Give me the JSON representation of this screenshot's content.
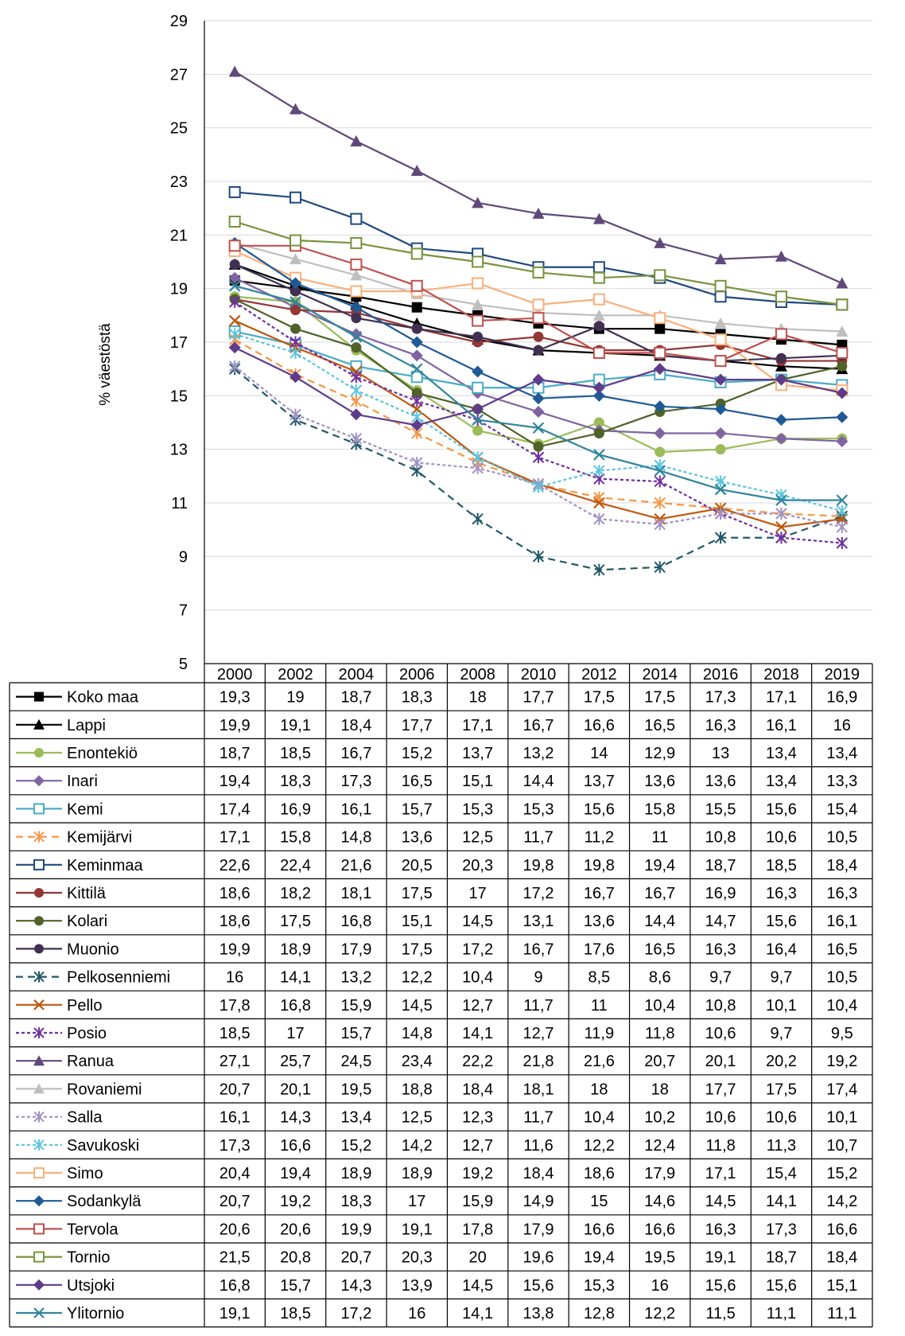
{
  "chart_data": {
    "type": "line",
    "ylabel": "% väestöstä",
    "ylim": [
      5,
      29
    ],
    "yticks": [
      5,
      7,
      9,
      11,
      13,
      15,
      17,
      19,
      21,
      23,
      25,
      27,
      29
    ],
    "ytick_labels": [
      "5",
      "7",
      "9",
      "11",
      "13",
      "15",
      "17",
      "19",
      "21",
      "23",
      "25",
      "27",
      "29"
    ],
    "categories": [
      "2000",
      "2002",
      "2004",
      "2006",
      "2008",
      "2010",
      "2012",
      "2014",
      "2016",
      "2018",
      "2019"
    ],
    "grid": true,
    "legend": "data table below the chart",
    "series": [
      {
        "name": "Koko maa",
        "color": "#000000",
        "marker": "square-filled",
        "dash": "solid",
        "values": [
          19.3,
          19,
          18.7,
          18.3,
          18,
          17.7,
          17.5,
          17.5,
          17.3,
          17.1,
          16.9
        ],
        "labels": [
          "19,3",
          "19",
          "18,7",
          "18,3",
          "18",
          "17,7",
          "17,5",
          "17,5",
          "17,3",
          "17,1",
          "16,9"
        ]
      },
      {
        "name": "Lappi",
        "color": "#000000",
        "marker": "triangle-filled",
        "dash": "solid",
        "values": [
          19.9,
          19.1,
          18.4,
          17.7,
          17.1,
          16.7,
          16.6,
          16.5,
          16.3,
          16.1,
          16
        ],
        "labels": [
          "19,9",
          "19,1",
          "18,4",
          "17,7",
          "17,1",
          "16,7",
          "16,6",
          "16,5",
          "16,3",
          "16,1",
          "16"
        ]
      },
      {
        "name": "Enontekiö",
        "color": "#9BBB59",
        "marker": "circle-filled",
        "dash": "solid",
        "values": [
          18.7,
          18.5,
          16.7,
          15.2,
          13.7,
          13.2,
          14,
          12.9,
          13,
          13.4,
          13.4
        ],
        "labels": [
          "18,7",
          "18,5",
          "16,7",
          "15,2",
          "13,7",
          "13,2",
          "14",
          "12,9",
          "13",
          "13,4",
          "13,4"
        ]
      },
      {
        "name": "Inari",
        "color": "#8064A2",
        "marker": "diamond-filled",
        "dash": "solid",
        "values": [
          19.4,
          18.3,
          17.3,
          16.5,
          15.1,
          14.4,
          13.7,
          13.6,
          13.6,
          13.4,
          13.3
        ],
        "labels": [
          "19,4",
          "18,3",
          "17,3",
          "16,5",
          "15,1",
          "14,4",
          "13,7",
          "13,6",
          "13,6",
          "13,4",
          "13,3"
        ]
      },
      {
        "name": "Kemi",
        "color": "#4BACC6",
        "marker": "square-open",
        "dash": "solid",
        "values": [
          17.4,
          16.9,
          16.1,
          15.7,
          15.3,
          15.3,
          15.6,
          15.8,
          15.5,
          15.6,
          15.4
        ],
        "labels": [
          "17,4",
          "16,9",
          "16,1",
          "15,7",
          "15,3",
          "15,3",
          "15,6",
          "15,8",
          "15,5",
          "15,6",
          "15,4"
        ]
      },
      {
        "name": "Kemijärvi",
        "color": "#F79646",
        "marker": "star",
        "dash": "dashed",
        "values": [
          17.1,
          15.8,
          14.8,
          13.6,
          12.5,
          11.7,
          11.2,
          11,
          10.8,
          10.6,
          10.5
        ],
        "labels": [
          "17,1",
          "15,8",
          "14,8",
          "13,6",
          "12,5",
          "11,7",
          "11,2",
          "11",
          "10,8",
          "10,6",
          "10,5"
        ]
      },
      {
        "name": "Keminmaa",
        "color": "#1F497D",
        "marker": "square-open",
        "dash": "solid",
        "values": [
          22.6,
          22.4,
          21.6,
          20.5,
          20.3,
          19.8,
          19.8,
          19.4,
          18.7,
          18.5,
          18.4
        ],
        "labels": [
          "22,6",
          "22,4",
          "21,6",
          "20,5",
          "20,3",
          "19,8",
          "19,8",
          "19,4",
          "18,7",
          "18,5",
          "18,4"
        ]
      },
      {
        "name": "Kittilä",
        "color": "#943634",
        "marker": "circle-filled",
        "dash": "solid",
        "values": [
          18.6,
          18.2,
          18.1,
          17.5,
          17,
          17.2,
          16.7,
          16.7,
          16.9,
          16.3,
          16.3
        ],
        "labels": [
          "18,6",
          "18,2",
          "18,1",
          "17,5",
          "17",
          "17,2",
          "16,7",
          "16,7",
          "16,9",
          "16,3",
          "16,3"
        ]
      },
      {
        "name": "Kolari",
        "color": "#4F6228",
        "marker": "circle-filled",
        "dash": "solid",
        "values": [
          18.6,
          17.5,
          16.8,
          15.1,
          14.5,
          13.1,
          13.6,
          14.4,
          14.7,
          15.6,
          16.1
        ],
        "labels": [
          "18,6",
          "17,5",
          "16,8",
          "15,1",
          "14,5",
          "13,1",
          "13,6",
          "14,4",
          "14,7",
          "15,6",
          "16,1"
        ]
      },
      {
        "name": "Muonio",
        "color": "#403152",
        "marker": "circle-filled",
        "dash": "solid",
        "values": [
          19.9,
          18.9,
          17.9,
          17.5,
          17.2,
          16.7,
          17.6,
          16.5,
          16.3,
          16.4,
          16.5
        ],
        "labels": [
          "19,9",
          "18,9",
          "17,9",
          "17,5",
          "17,2",
          "16,7",
          "17,6",
          "16,5",
          "16,3",
          "16,4",
          "16,5"
        ]
      },
      {
        "name": "Pelkosenniemi",
        "color": "#215968",
        "marker": "star",
        "dash": "dashed",
        "values": [
          16,
          14.1,
          13.2,
          12.2,
          10.4,
          9,
          8.5,
          8.6,
          9.7,
          9.7,
          10.5
        ],
        "labels": [
          "16",
          "14,1",
          "13,2",
          "12,2",
          "10,4",
          "9",
          "8,5",
          "8,6",
          "9,7",
          "9,7",
          "10,5"
        ]
      },
      {
        "name": "Pello",
        "color": "#C0580B",
        "marker": "x",
        "dash": "solid",
        "values": [
          17.8,
          16.8,
          15.9,
          14.5,
          12.7,
          11.7,
          11,
          10.4,
          10.8,
          10.1,
          10.4
        ],
        "labels": [
          "17,8",
          "16,8",
          "15,9",
          "14,5",
          "12,7",
          "11,7",
          "11",
          "10,4",
          "10,8",
          "10,1",
          "10,4"
        ]
      },
      {
        "name": "Posio",
        "color": "#7030A0",
        "marker": "star",
        "dash": "dotted",
        "values": [
          18.5,
          17,
          15.7,
          14.8,
          14.1,
          12.7,
          11.9,
          11.8,
          10.6,
          9.7,
          9.5
        ],
        "labels": [
          "18,5",
          "17",
          "15,7",
          "14,8",
          "14,1",
          "12,7",
          "11,9",
          "11,8",
          "10,6",
          "9,7",
          "9,5"
        ]
      },
      {
        "name": "Ranua",
        "color": "#60497A",
        "marker": "triangle-filled",
        "dash": "solid",
        "values": [
          27.1,
          25.7,
          24.5,
          23.4,
          22.2,
          21.8,
          21.6,
          20.7,
          20.1,
          20.2,
          19.2
        ],
        "labels": [
          "27,1",
          "25,7",
          "24,5",
          "23,4",
          "22,2",
          "21,8",
          "21,6",
          "20,7",
          "20,1",
          "20,2",
          "19,2"
        ]
      },
      {
        "name": "Rovaniemi",
        "color": "#BFBFBF",
        "marker": "triangle-filled",
        "dash": "solid",
        "values": [
          20.7,
          20.1,
          19.5,
          18.8,
          18.4,
          18.1,
          18,
          18,
          17.7,
          17.5,
          17.4
        ],
        "labels": [
          "20,7",
          "20,1",
          "19,5",
          "18,8",
          "18,4",
          "18,1",
          "18",
          "18",
          "17,7",
          "17,5",
          "17,4"
        ]
      },
      {
        "name": "Salla",
        "color": "#A092C4",
        "marker": "star",
        "dash": "dotted",
        "values": [
          16.1,
          14.3,
          13.4,
          12.5,
          12.3,
          11.7,
          10.4,
          10.2,
          10.6,
          10.6,
          10.1
        ],
        "labels": [
          "16,1",
          "14,3",
          "13,4",
          "12,5",
          "12,3",
          "11,7",
          "10,4",
          "10,2",
          "10,6",
          "10,6",
          "10,1"
        ]
      },
      {
        "name": "Savukoski",
        "color": "#5BC4DE",
        "marker": "star",
        "dash": "dotted",
        "values": [
          17.3,
          16.6,
          15.2,
          14.2,
          12.7,
          11.6,
          12.2,
          12.4,
          11.8,
          11.3,
          10.7
        ],
        "labels": [
          "17,3",
          "16,6",
          "15,2",
          "14,2",
          "12,7",
          "11,6",
          "12,2",
          "12,4",
          "11,8",
          "11,3",
          "10,7"
        ]
      },
      {
        "name": "Simo",
        "color": "#FAB07A",
        "marker": "square-open",
        "dash": "solid",
        "values": [
          20.4,
          19.4,
          18.9,
          18.9,
          19.2,
          18.4,
          18.6,
          17.9,
          17.1,
          15.4,
          15.2
        ],
        "labels": [
          "20,4",
          "19,4",
          "18,9",
          "18,9",
          "19,2",
          "18,4",
          "18,6",
          "17,9",
          "17,1",
          "15,4",
          "15,2"
        ]
      },
      {
        "name": "Sodankylä",
        "color": "#1F5A96",
        "marker": "diamond-filled",
        "dash": "solid",
        "values": [
          20.7,
          19.2,
          18.3,
          17,
          15.9,
          14.9,
          15,
          14.6,
          14.5,
          14.1,
          14.2
        ],
        "labels": [
          "20,7",
          "19,2",
          "18,3",
          "17",
          "15,9",
          "14,9",
          "15",
          "14,6",
          "14,5",
          "14,1",
          "14,2"
        ]
      },
      {
        "name": "Tervola",
        "color": "#C0504D",
        "marker": "square-open",
        "dash": "solid",
        "values": [
          20.6,
          20.6,
          19.9,
          19.1,
          17.8,
          17.9,
          16.6,
          16.6,
          16.3,
          17.3,
          16.6
        ],
        "labels": [
          "20,6",
          "20,6",
          "19,9",
          "19,1",
          "17,8",
          "17,9",
          "16,6",
          "16,6",
          "16,3",
          "17,3",
          "16,6"
        ]
      },
      {
        "name": "Tornio",
        "color": "#77933C",
        "marker": "square-open",
        "dash": "solid",
        "values": [
          21.5,
          20.8,
          20.7,
          20.3,
          20,
          19.6,
          19.4,
          19.5,
          19.1,
          18.7,
          18.4
        ],
        "labels": [
          "21,5",
          "20,8",
          "20,7",
          "20,3",
          "20",
          "19,6",
          "19,4",
          "19,5",
          "19,1",
          "18,7",
          "18,4"
        ]
      },
      {
        "name": "Utsjoki",
        "color": "#5F3C8A",
        "marker": "diamond-filled",
        "dash": "solid",
        "values": [
          16.8,
          15.7,
          14.3,
          13.9,
          14.5,
          15.6,
          15.3,
          16,
          15.6,
          15.6,
          15.1
        ],
        "labels": [
          "16,8",
          "15,7",
          "14,3",
          "13,9",
          "14,5",
          "15,6",
          "15,3",
          "16",
          "15,6",
          "15,6",
          "15,1"
        ]
      },
      {
        "name": "Ylitornio",
        "color": "#31859C",
        "marker": "x",
        "dash": "solid",
        "values": [
          19.1,
          18.5,
          17.2,
          16,
          14.1,
          13.8,
          12.8,
          12.2,
          11.5,
          11.1,
          11.1
        ],
        "labels": [
          "19,1",
          "18,5",
          "17,2",
          "16",
          "14,1",
          "13,8",
          "12,8",
          "12,2",
          "11,5",
          "11,1",
          "11,1"
        ]
      }
    ]
  }
}
